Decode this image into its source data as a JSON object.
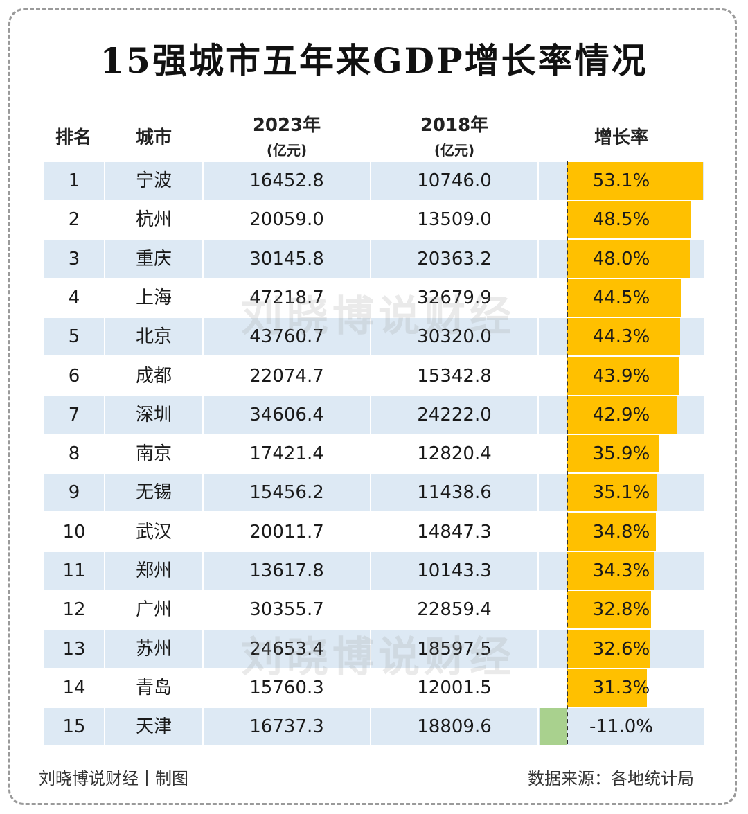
{
  "title": "15强城市五年来GDP增长率情况",
  "watermark": "刘晓博说财经",
  "footer": {
    "left": "刘晓博说财经丨制图",
    "right": "数据来源：各地统计局"
  },
  "headers": {
    "rank": "排名",
    "city": "城市",
    "gdp2023": "2023年",
    "gdp2023_unit": "(亿元)",
    "gdp2018": "2018年",
    "gdp2018_unit": "(亿元)",
    "growth": "增长率"
  },
  "colors": {
    "row_shade": "#dde9f4",
    "positive_bar": "#ffc000",
    "negative_bar": "#a9d18e"
  },
  "chart_data": {
    "type": "table",
    "title": "15强城市五年来GDP增长率情况",
    "columns": [
      "排名",
      "城市",
      "2023年(亿元)",
      "2018年(亿元)",
      "增长率"
    ],
    "rows": [
      {
        "rank": "1",
        "city": "宁波",
        "gdp2023": "16452.8",
        "gdp2018": "10746.0",
        "growth": 53.1,
        "growth_label": "53.1%"
      },
      {
        "rank": "2",
        "city": "杭州",
        "gdp2023": "20059.0",
        "gdp2018": "13509.0",
        "growth": 48.5,
        "growth_label": "48.5%"
      },
      {
        "rank": "3",
        "city": "重庆",
        "gdp2023": "30145.8",
        "gdp2018": "20363.2",
        "growth": 48.0,
        "growth_label": "48.0%"
      },
      {
        "rank": "4",
        "city": "上海",
        "gdp2023": "47218.7",
        "gdp2018": "32679.9",
        "growth": 44.5,
        "growth_label": "44.5%"
      },
      {
        "rank": "5",
        "city": "北京",
        "gdp2023": "43760.7",
        "gdp2018": "30320.0",
        "growth": 44.3,
        "growth_label": "44.3%"
      },
      {
        "rank": "6",
        "city": "成都",
        "gdp2023": "22074.7",
        "gdp2018": "15342.8",
        "growth": 43.9,
        "growth_label": "43.9%"
      },
      {
        "rank": "7",
        "city": "深圳",
        "gdp2023": "34606.4",
        "gdp2018": "24222.0",
        "growth": 42.9,
        "growth_label": "42.9%"
      },
      {
        "rank": "8",
        "city": "南京",
        "gdp2023": "17421.4",
        "gdp2018": "12820.4",
        "growth": 35.9,
        "growth_label": "35.9%"
      },
      {
        "rank": "9",
        "city": "无锡",
        "gdp2023": "15456.2",
        "gdp2018": "11438.6",
        "growth": 35.1,
        "growth_label": "35.1%"
      },
      {
        "rank": "10",
        "city": "武汉",
        "gdp2023": "20011.7",
        "gdp2018": "14847.3",
        "growth": 34.8,
        "growth_label": "34.8%"
      },
      {
        "rank": "11",
        "city": "郑州",
        "gdp2023": "13617.8",
        "gdp2018": "10143.3",
        "growth": 34.3,
        "growth_label": "34.3%"
      },
      {
        "rank": "12",
        "city": "广州",
        "gdp2023": "30355.7",
        "gdp2018": "22859.4",
        "growth": 32.8,
        "growth_label": "32.8%"
      },
      {
        "rank": "13",
        "city": "苏州",
        "gdp2023": "24653.4",
        "gdp2018": "18597.5",
        "growth": 32.6,
        "growth_label": "32.6%"
      },
      {
        "rank": "14",
        "city": "青岛",
        "gdp2023": "15760.3",
        "gdp2018": "12001.5",
        "growth": 31.3,
        "growth_label": "31.3%"
      },
      {
        "rank": "15",
        "city": "天津",
        "gdp2023": "16737.3",
        "gdp2018": "18809.6",
        "growth": -11.0,
        "growth_label": "-11.0%"
      }
    ]
  }
}
